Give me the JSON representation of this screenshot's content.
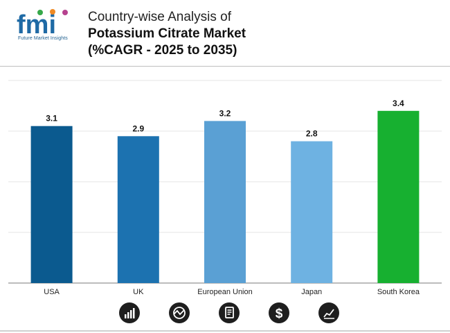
{
  "header": {
    "logo_text": "fmi",
    "logo_subtext": "Future Market Insights",
    "title_line1": "Country-wise Analysis of",
    "title_line2": "Potassium Citrate Market",
    "title_line3": "(%CAGR - 2025 to 2035)"
  },
  "chart_data": {
    "type": "bar",
    "title": "Country-wise Analysis of Potassium Citrate Market (%CAGR - 2025 to 2035)",
    "categories": [
      "USA",
      "UK",
      "European Union",
      "Japan",
      "South Korea"
    ],
    "values": [
      3.1,
      2.9,
      3.2,
      2.8,
      3.4
    ],
    "data_labels": [
      "3.1",
      "2.9",
      "3.2",
      "2.8",
      "3.4"
    ],
    "bar_colors": [
      "#0b5a8f",
      "#1c72b0",
      "#5aa0d4",
      "#6eb2e2",
      "#17b030"
    ],
    "xlabel": "",
    "ylabel": "",
    "ylim": [
      0,
      4
    ],
    "grid": true,
    "legend": "none"
  },
  "footer": {
    "icons": [
      "bar-growth-icon",
      "chart-cycle-icon",
      "report-icon",
      "dollar-icon",
      "trend-line-icon"
    ]
  }
}
